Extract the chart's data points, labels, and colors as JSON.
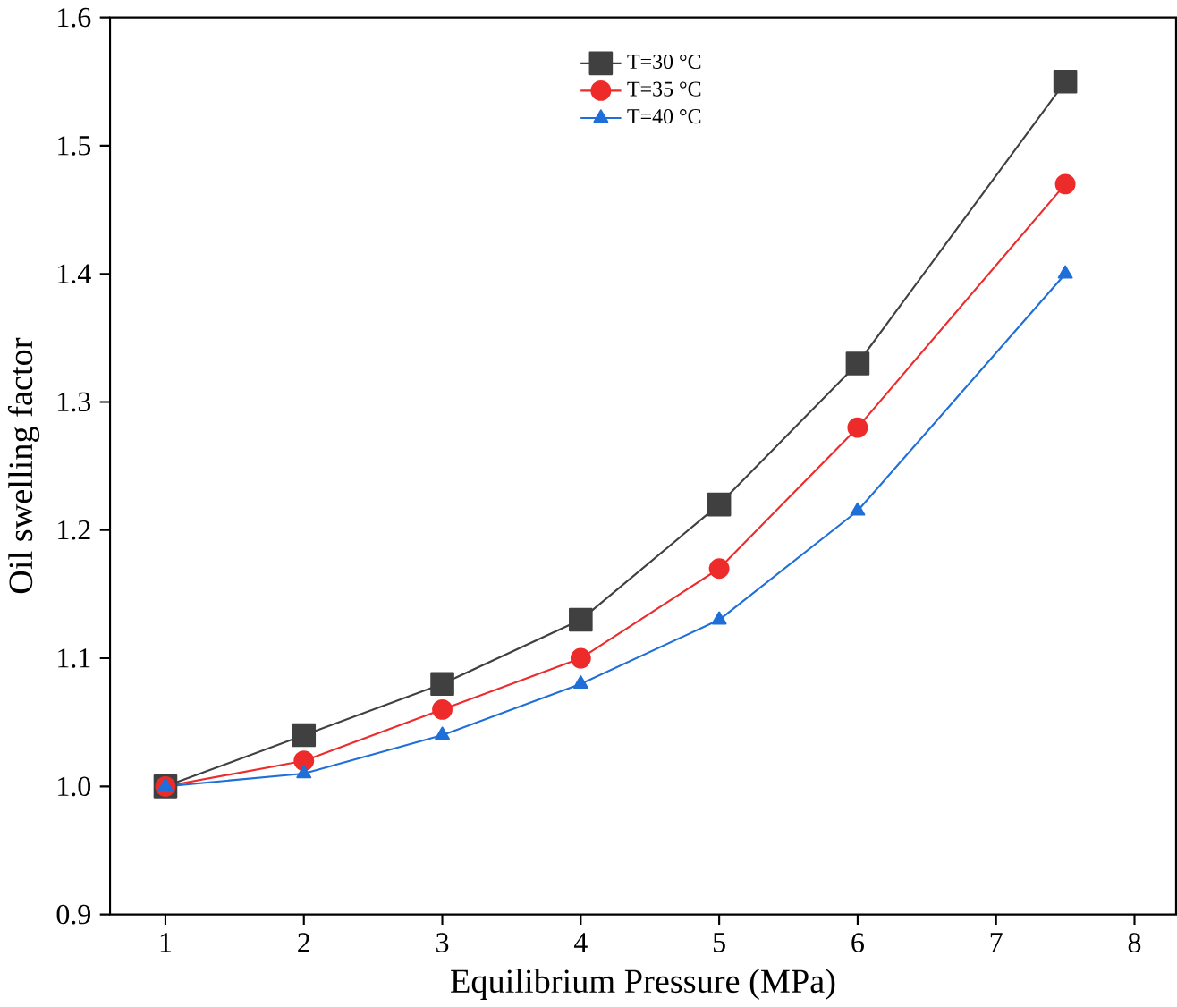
{
  "chart_data": {
    "type": "line",
    "xlabel": "Equilibrium Pressure (MPa)",
    "ylabel": "Oil swelling factor",
    "x": [
      1,
      2,
      3,
      4,
      5,
      6,
      7.5
    ],
    "series": [
      {
        "name": "T=30 °C",
        "color": "#404040",
        "marker": "square",
        "values": [
          1.0,
          1.04,
          1.08,
          1.13,
          1.22,
          1.33,
          1.55
        ]
      },
      {
        "name": "T=35 °C",
        "color": "#ee2b2b",
        "marker": "circle",
        "values": [
          1.0,
          1.02,
          1.06,
          1.1,
          1.17,
          1.28,
          1.47
        ]
      },
      {
        "name": "T=40 °C",
        "color": "#1f6fd8",
        "marker": "triangle",
        "values": [
          1.0,
          1.01,
          1.04,
          1.08,
          1.13,
          1.215,
          1.4
        ]
      }
    ],
    "xlim": [
      0.6,
      8.3
    ],
    "ylim": [
      0.9,
      1.6
    ],
    "xticks": [
      1,
      2,
      3,
      4,
      5,
      6,
      7,
      8
    ],
    "yticks": [
      {
        "value": 0.9,
        "label": "0.9"
      },
      {
        "value": 1.0,
        "label": "1.0"
      },
      {
        "value": 1.1,
        "label": "1.1"
      },
      {
        "value": 1.2,
        "label": "1.2"
      },
      {
        "value": 1.3,
        "label": "1.3"
      },
      {
        "value": 1.4,
        "label": "1.4"
      },
      {
        "value": 1.5,
        "label": "1.5"
      },
      {
        "value": 1.6,
        "label": "1.6"
      }
    ],
    "grid": false,
    "legend": "top",
    "line_style": "solid"
  }
}
